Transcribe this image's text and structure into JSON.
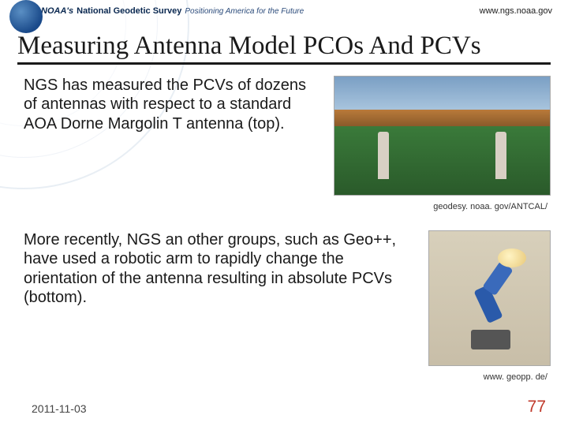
{
  "header": {
    "brand_noaa": "NOAA's",
    "brand_ngs": "National Geodetic Survey",
    "tagline": "Positioning America for the Future",
    "url": "www.ngs.noaa.gov"
  },
  "title": "Measuring Antenna Model PCOs And PCVs",
  "para1": "NGS has measured the PCVs of dozens of antennas with respect to a standard AOA Dorne Margolin T antenna (top).",
  "caption1": "geodesy. noaa. gov/ANTCAL/",
  "para2": "More recently, NGS an other groups, such as Geo++, have used a robotic arm to rapidly change the orientation of the antenna resulting in absolute PCVs (bottom).",
  "caption2": "www. geopp. de/",
  "footer": {
    "date": "2011-11-03",
    "page": "77"
  },
  "colors": {
    "title_underline": "#1a1a1a",
    "page_number": "#c0392b",
    "brand": "#0a2850"
  }
}
